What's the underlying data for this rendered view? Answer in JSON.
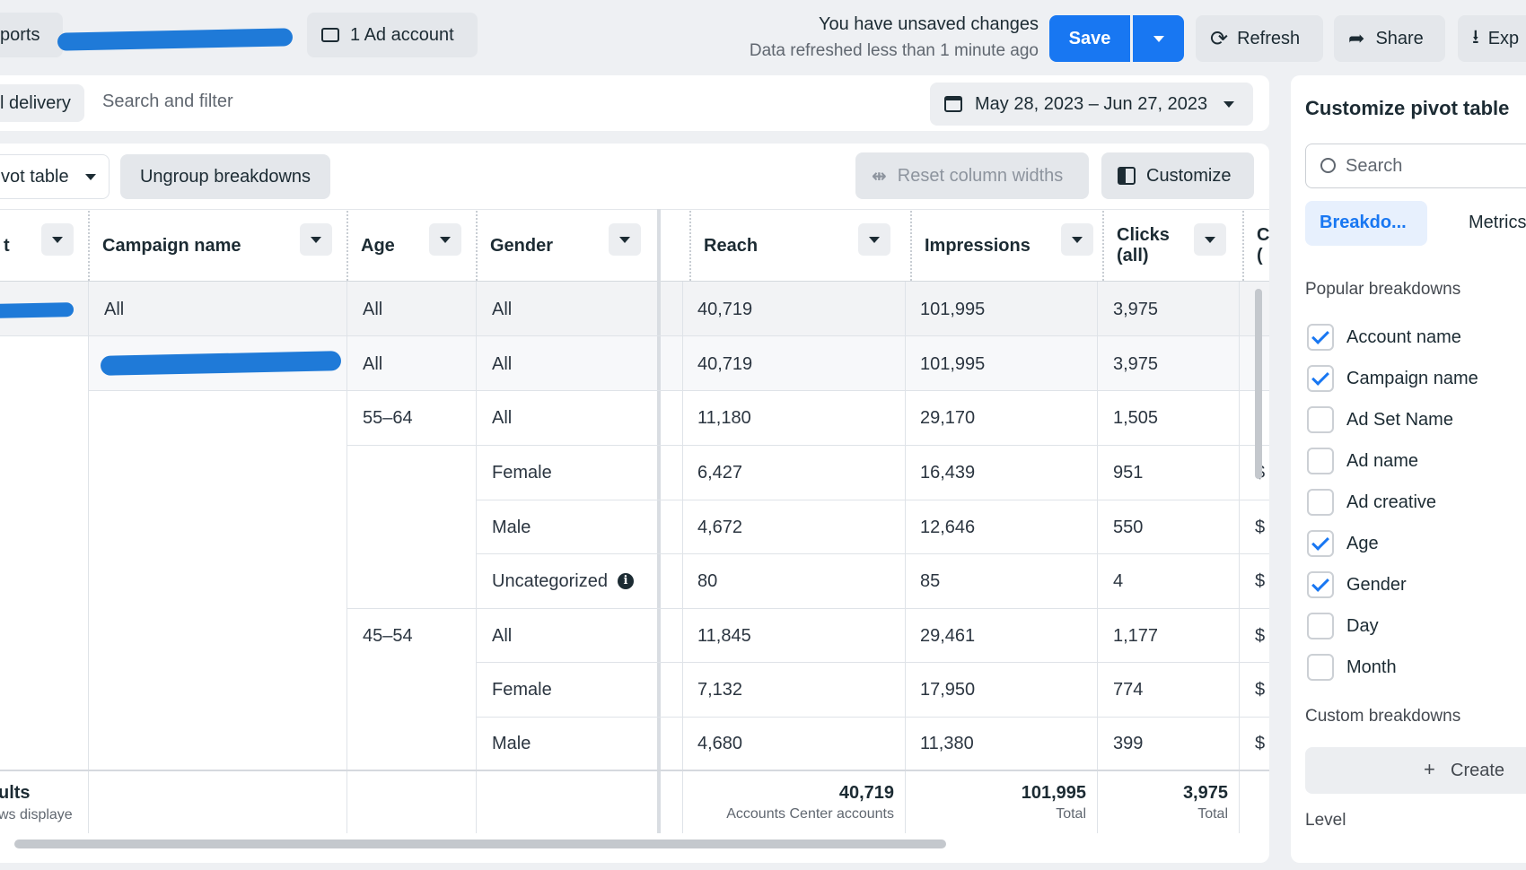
{
  "topbar": {
    "reports_partial": "ports",
    "ad_account_label": "1 Ad account",
    "unsaved_changes": "You have unsaved changes",
    "data_refreshed": "Data refreshed less than 1 minute ago",
    "save_label": "Save",
    "refresh_label": "Refresh",
    "share_label": "Share",
    "export_partial": "Exp"
  },
  "filterbar": {
    "delivery_partial": "l delivery",
    "search_placeholder": "Search and filter",
    "date_range": "May 28, 2023 – Jun 27, 2023"
  },
  "toolbar": {
    "pivot_table_partial": "vot table",
    "ungroup_label": "Ungroup breakdowns",
    "reset_widths_label": "Reset column widths",
    "customize_label": "Customize"
  },
  "table": {
    "headers": {
      "first_partial": "t",
      "campaign": "Campaign name",
      "age": "Age",
      "gender": "Gender",
      "reach": "Reach",
      "impressions": "Impressions",
      "clicks_line1": "Clicks",
      "clicks_line2": "(all)",
      "next_partial_1": "C",
      "next_partial_2": "("
    },
    "rows": [
      {
        "campaign": "All",
        "age": "All",
        "gender": "All",
        "reach": "40,719",
        "impressions": "101,995",
        "clicks": "3,975",
        "next": "-"
      },
      {
        "campaign": "",
        "age": "All",
        "gender": "All",
        "reach": "40,719",
        "impressions": "101,995",
        "clicks": "3,975",
        "next": "-"
      },
      {
        "campaign": "",
        "age": "55–64",
        "gender": "All",
        "reach": "11,180",
        "impressions": "29,170",
        "clicks": "1,505",
        "next": "-"
      },
      {
        "campaign": "",
        "age": "",
        "gender": "Female",
        "reach": "6,427",
        "impressions": "16,439",
        "clicks": "951",
        "next": "$"
      },
      {
        "campaign": "",
        "age": "",
        "gender": "Male",
        "reach": "4,672",
        "impressions": "12,646",
        "clicks": "550",
        "next": "$"
      },
      {
        "campaign": "",
        "age": "",
        "gender": "Uncategorized",
        "reach": "80",
        "impressions": "85",
        "clicks": "4",
        "next": "$"
      },
      {
        "campaign": "",
        "age": "45–54",
        "gender": "All",
        "reach": "11,845",
        "impressions": "29,461",
        "clicks": "1,177",
        "next": "$"
      },
      {
        "campaign": "",
        "age": "",
        "gender": "Female",
        "reach": "7,132",
        "impressions": "17,950",
        "clicks": "774",
        "next": "$"
      },
      {
        "campaign": "",
        "age": "",
        "gender": "Male",
        "reach": "4,680",
        "impressions": "11,380",
        "clicks": "399",
        "next": "$"
      }
    ],
    "footer": {
      "results_partial": "ults",
      "rows_displayed_partial": "ws displaye",
      "reach_total": "40,719",
      "reach_caption": "Accounts Center accounts",
      "impressions_total": "101,995",
      "impressions_caption": "Total",
      "clicks_total": "3,975",
      "clicks_caption": "Total"
    }
  },
  "panel": {
    "title": "Customize pivot table",
    "search_placeholder": "Search",
    "tab_breakdowns": "Breakdo...",
    "tab_metrics": "Metrics",
    "popular_heading": "Popular breakdowns",
    "breakdowns": [
      {
        "label": "Account name",
        "checked": true
      },
      {
        "label": "Campaign name",
        "checked": true
      },
      {
        "label": "Ad Set Name",
        "checked": false
      },
      {
        "label": "Ad name",
        "checked": false
      },
      {
        "label": "Ad creative",
        "checked": false
      },
      {
        "label": "Age",
        "checked": true
      },
      {
        "label": "Gender",
        "checked": true
      },
      {
        "label": "Day",
        "checked": false
      },
      {
        "label": "Month",
        "checked": false
      }
    ],
    "custom_heading": "Custom breakdowns",
    "create_label": "Create",
    "level_heading": "Level"
  },
  "colors": {
    "accent": "#1877f2",
    "scribble": "#1f7ad8"
  }
}
